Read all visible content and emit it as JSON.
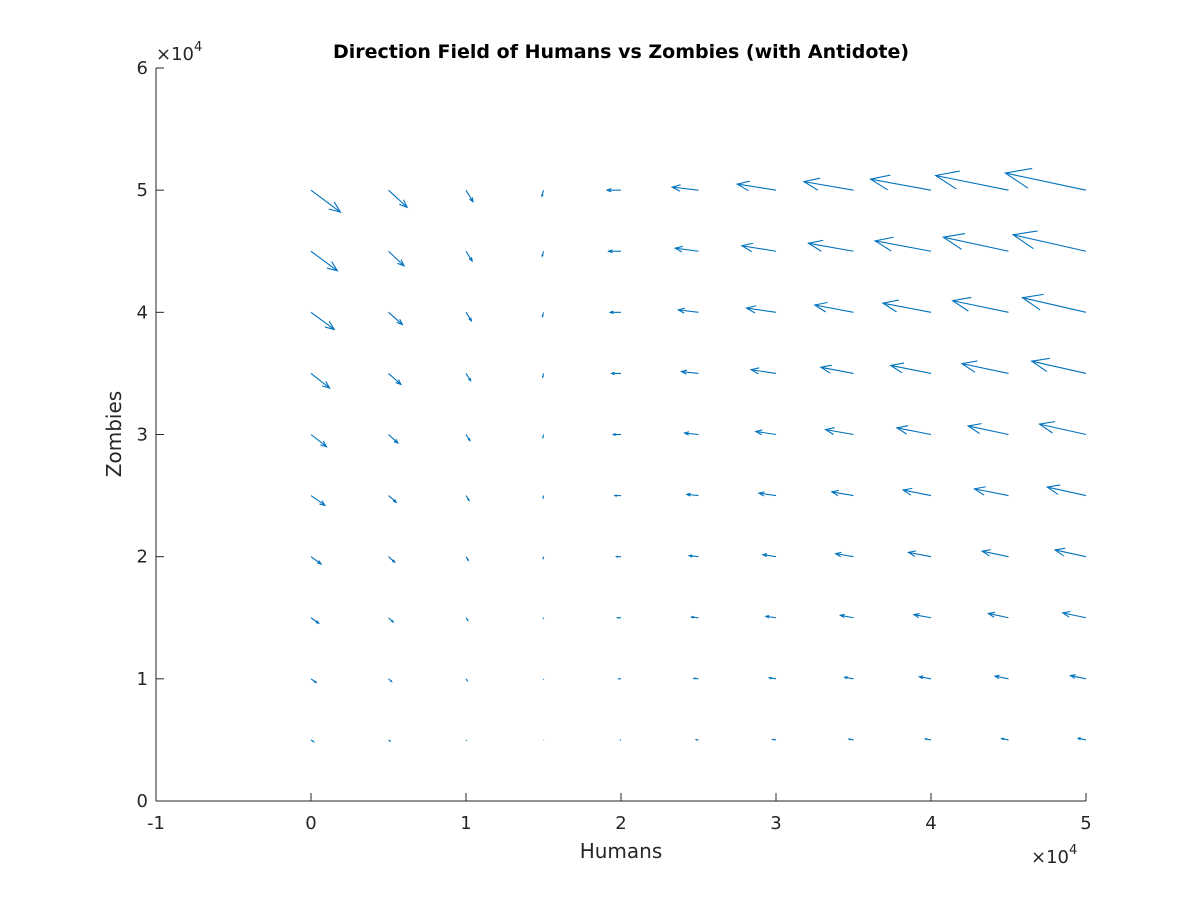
{
  "chart_data": {
    "type": "quiver",
    "title": "Direction Field of Humans vs Zombies (with Antidote)",
    "xlabel": "Humans",
    "ylabel": "Zombies",
    "xlim": [
      -10000,
      50000
    ],
    "ylim": [
      0,
      60000
    ],
    "x_ticks": [
      -10000,
      0,
      10000,
      20000,
      30000,
      40000,
      50000
    ],
    "x_tick_labels": [
      "-1",
      "0",
      "1",
      "2",
      "3",
      "4",
      "5"
    ],
    "y_ticks": [
      0,
      10000,
      20000,
      30000,
      40000,
      50000,
      60000
    ],
    "y_tick_labels": [
      "0",
      "1",
      "2",
      "3",
      "4",
      "5",
      "6"
    ],
    "x_exponent": {
      "base": "10",
      "power": "4"
    },
    "y_exponent": {
      "base": "10",
      "power": "4"
    },
    "grid": false,
    "arrow_color": "#0072BD",
    "grid_x": [
      0,
      5000,
      10000,
      15000,
      20000,
      25000,
      30000,
      35000,
      40000,
      45000,
      50000
    ],
    "grid_y": [
      5000,
      10000,
      15000,
      20000,
      25000,
      30000,
      35000,
      40000,
      45000,
      50000
    ],
    "vectors": [
      {
        "y": 50000,
        "dx": [
          1900,
          1200,
          450,
          -100,
          -900,
          -1700,
          -2500,
          -3200,
          -3900,
          -4700,
          -5200
        ],
        "dy": [
          -1800,
          -1400,
          -950,
          -500,
          0,
          250,
          500,
          700,
          900,
          1200,
          1400
        ]
      },
      {
        "y": 45000,
        "dx": [
          1700,
          1000,
          400,
          -80,
          -800,
          -1500,
          -2200,
          -2900,
          -3600,
          -4200,
          -4700
        ],
        "dy": [
          -1600,
          -1200,
          -800,
          -400,
          0,
          250,
          450,
          650,
          850,
          1150,
          1350
        ]
      },
      {
        "y": 40000,
        "dx": [
          1500,
          900,
          350,
          -70,
          -700,
          -1300,
          -1900,
          -2500,
          -3100,
          -3600,
          -4100
        ],
        "dy": [
          -1400,
          -1000,
          -700,
          -350,
          0,
          200,
          350,
          600,
          750,
          950,
          1200
        ]
      },
      {
        "y": 35000,
        "dx": [
          1200,
          800,
          300,
          -50,
          -600,
          -1100,
          -1600,
          -2100,
          -2600,
          -3000,
          -3500
        ],
        "dy": [
          -1200,
          -900,
          -600,
          -300,
          0,
          150,
          300,
          500,
          650,
          800,
          1000
        ]
      },
      {
        "y": 30000,
        "dx": [
          1000,
          600,
          250,
          -40,
          -500,
          -900,
          -1300,
          -1800,
          -2200,
          -2600,
          -3000
        ],
        "dy": [
          -1000,
          -700,
          -500,
          -250,
          0,
          120,
          250,
          400,
          550,
          700,
          850
        ]
      },
      {
        "y": 25000,
        "dx": [
          900,
          500,
          200,
          -30,
          -400,
          -750,
          -1100,
          -1400,
          -1800,
          -2200,
          -2500
        ],
        "dy": [
          -800,
          -550,
          -400,
          -200,
          0,
          100,
          200,
          300,
          450,
          550,
          700
        ]
      },
      {
        "y": 20000,
        "dx": [
          650,
          400,
          150,
          -20,
          -300,
          -600,
          -850,
          -1150,
          -1450,
          -1700,
          -2000
        ],
        "dy": [
          -600,
          -450,
          -300,
          -150,
          0,
          80,
          170,
          250,
          350,
          450,
          550
        ]
      },
      {
        "y": 15000,
        "dx": [
          500,
          300,
          120,
          -15,
          -230,
          -450,
          -650,
          -850,
          -1100,
          -1300,
          -1500
        ],
        "dy": [
          -450,
          -350,
          -220,
          -100,
          0,
          60,
          120,
          200,
          250,
          350,
          400
        ]
      },
      {
        "y": 10000,
        "dx": [
          330,
          200,
          80,
          -10,
          -150,
          -300,
          -430,
          -570,
          -750,
          -870,
          -1000
        ],
        "dy": [
          -300,
          -220,
          -150,
          -70,
          0,
          40,
          80,
          130,
          170,
          220,
          270
        ]
      },
      {
        "y": 5000,
        "dx": [
          170,
          100,
          40,
          -5,
          -80,
          -150,
          -220,
          -290,
          -370,
          -440,
          -510
        ],
        "dy": [
          -150,
          -110,
          -75,
          -35,
          0,
          20,
          40,
          65,
          85,
          110,
          130
        ]
      }
    ]
  }
}
